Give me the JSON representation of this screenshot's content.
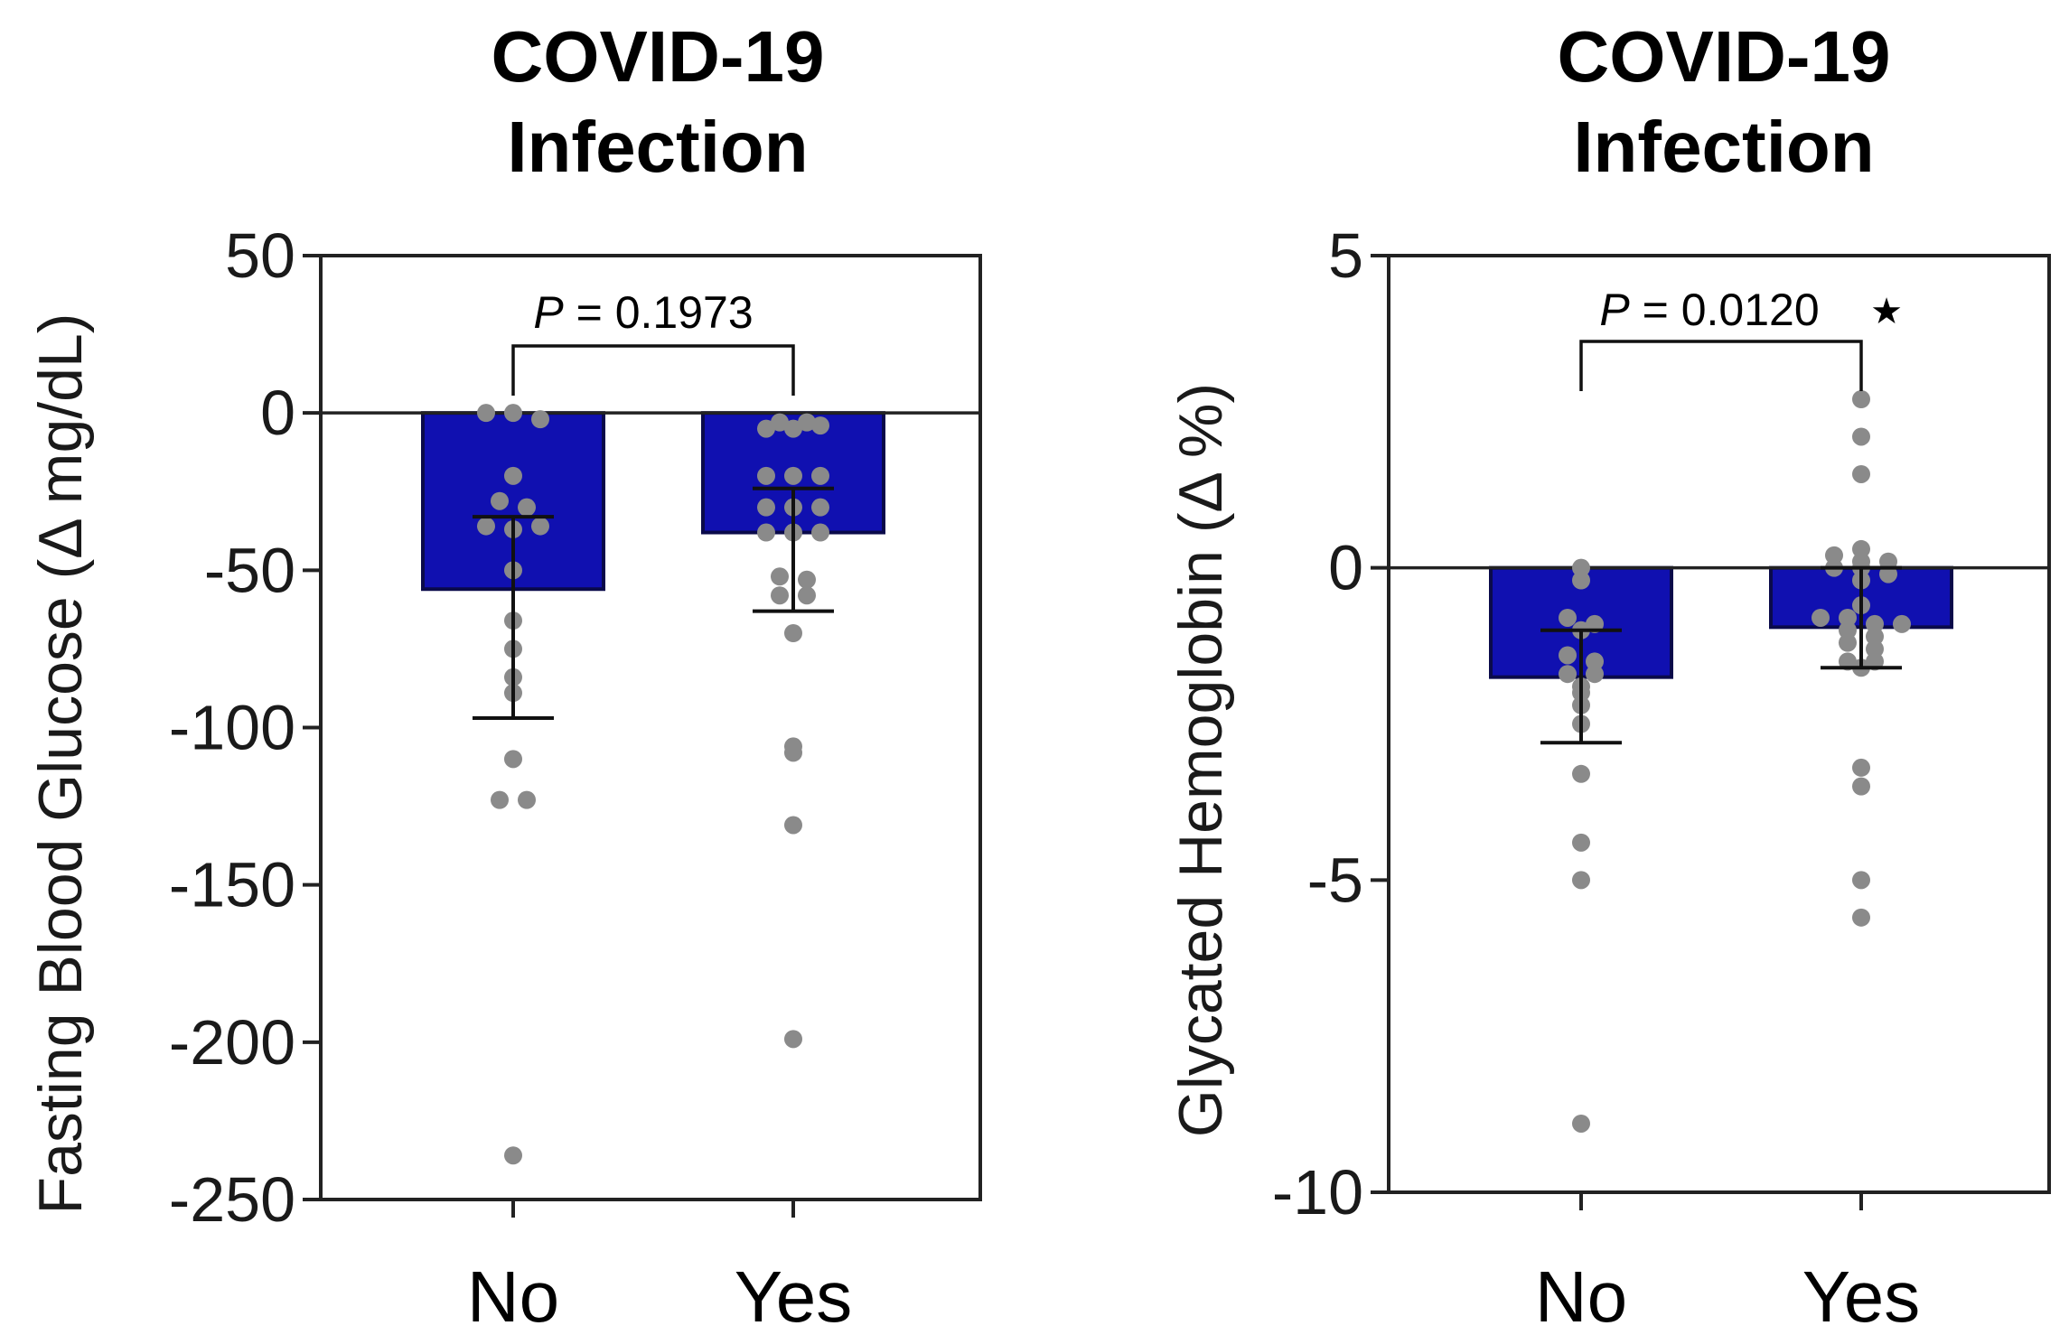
{
  "chart_data": [
    {
      "type": "bar",
      "title_lines": [
        "COVID-19",
        "Infection"
      ],
      "ylabel": "Fasting Blood Glucose (Δ mg/dL)",
      "categories": [
        "No",
        "Yes"
      ],
      "ylim": [
        -250,
        50
      ],
      "yticks": [
        50,
        0,
        -50,
        -100,
        -150,
        -200,
        -250
      ],
      "ytick_labels": [
        "50",
        "0",
        "-50",
        "-100",
        "-150",
        "-200",
        "-250"
      ],
      "bar_color": "#1010b0",
      "values": [
        -56,
        -38
      ],
      "error_low": [
        -97,
        -63
      ],
      "error_high": [
        -33,
        -24
      ],
      "points": [
        [
          0,
          0,
          -2,
          -20,
          -28,
          -30,
          -36,
          -37,
          -36,
          -50,
          -66,
          -75,
          -84,
          -89,
          -110,
          -123,
          -123,
          -236
        ],
        [
          -5,
          -5,
          -3,
          -3,
          -4,
          -20,
          -20,
          -20,
          -30,
          -30,
          -30,
          -38,
          -38,
          -38,
          -52,
          -53,
          -58,
          -58,
          -70,
          -108,
          -106,
          -131,
          -199
        ]
      ],
      "annotation": {
        "p_label": "P",
        "p_text": " = 0.1973",
        "star": ""
      }
    },
    {
      "type": "bar",
      "title_lines": [
        "COVID-19",
        "Infection"
      ],
      "ylabel": "Glycated Hemoglobin (Δ %)",
      "categories": [
        "No",
        "Yes"
      ],
      "ylim": [
        -10,
        5
      ],
      "yticks": [
        5,
        0,
        -5,
        -10
      ],
      "ytick_labels": [
        "5",
        "0",
        "-5",
        "-10"
      ],
      "bar_color": "#1010b0",
      "values": [
        -1.75,
        -0.95
      ],
      "error_low": [
        -2.8,
        -1.6
      ],
      "error_high": [
        -1.0,
        0.0
      ],
      "points": [
        [
          0,
          -0.2,
          -0.8,
          -0.9,
          -1.0,
          -1.4,
          -1.5,
          -1.7,
          -1.7,
          -1.9,
          -2.0,
          -2.2,
          -2.5,
          -3.3,
          -4.4,
          -5.0,
          -8.9
        ],
        [
          2.7,
          2.1,
          1.5,
          0.3,
          0.2,
          0.1,
          0.1,
          0.0,
          0.0,
          -0.1,
          -0.2,
          -0.6,
          -0.8,
          -0.8,
          -0.9,
          -0.9,
          -1.0,
          -1.1,
          -1.2,
          -1.3,
          -1.5,
          -1.5,
          -1.6,
          -3.2,
          -3.5,
          -5.0,
          -5.6
        ]
      ],
      "annotation": {
        "p_label": "P",
        "p_text": " = 0.0120",
        "star": "★"
      }
    }
  ]
}
